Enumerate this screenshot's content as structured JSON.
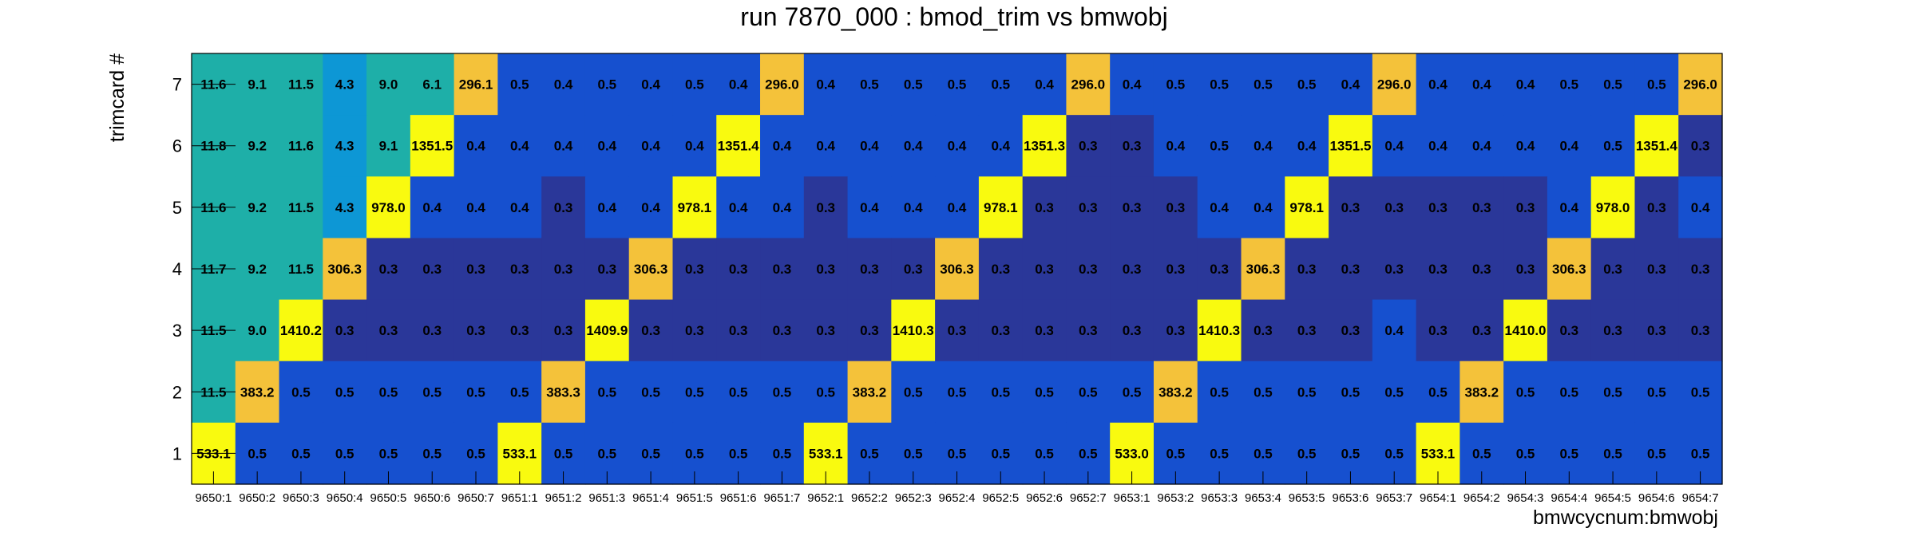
{
  "chart_data": {
    "type": "heatmap",
    "title": "run 7870_000 : bmod_trim vs bmwobj",
    "xlabel": "bmwcycnum:bmwobj",
    "ylabel": "trimcard #",
    "x_categories": [
      "9650:1",
      "9650:2",
      "9650:3",
      "9650:4",
      "9650:5",
      "9650:6",
      "9650:7",
      "9651:1",
      "9651:2",
      "9651:3",
      "9651:4",
      "9651:5",
      "9651:6",
      "9651:7",
      "9652:1",
      "9652:2",
      "9652:3",
      "9652:4",
      "9652:5",
      "9652:6",
      "9652:7",
      "9653:1",
      "9653:2",
      "9653:3",
      "9653:4",
      "9653:5",
      "9653:6",
      "9653:7",
      "9654:1",
      "9654:2",
      "9654:3",
      "9654:4",
      "9654:5",
      "9654:6",
      "9654:7"
    ],
    "y_categories": [
      "7",
      "6",
      "5",
      "4",
      "3",
      "2",
      "1"
    ],
    "z": [
      [
        "11.6",
        "9.1",
        "11.5",
        "4.3",
        "9.0",
        "6.1",
        "296.1",
        "0.5",
        "0.4",
        "0.5",
        "0.4",
        "0.5",
        "0.4",
        "296.0",
        "0.4",
        "0.5",
        "0.5",
        "0.5",
        "0.5",
        "0.4",
        "296.0",
        "0.4",
        "0.5",
        "0.5",
        "0.5",
        "0.5",
        "0.4",
        "296.0",
        "0.4",
        "0.4",
        "0.4",
        "0.5",
        "0.5",
        "0.5",
        "296.0"
      ],
      [
        "11.8",
        "9.2",
        "11.6",
        "4.3",
        "9.1",
        "1351.5",
        "0.4",
        "0.4",
        "0.4",
        "0.4",
        "0.4",
        "0.4",
        "1351.4",
        "0.4",
        "0.4",
        "0.4",
        "0.4",
        "0.4",
        "0.4",
        "1351.3",
        "0.3",
        "0.3",
        "0.4",
        "0.5",
        "0.4",
        "0.4",
        "1351.5",
        "0.4",
        "0.4",
        "0.4",
        "0.4",
        "0.4",
        "0.5",
        "1351.4",
        "0.3"
      ],
      [
        "11.6",
        "9.2",
        "11.5",
        "4.3",
        "978.0",
        "0.4",
        "0.4",
        "0.4",
        "0.3",
        "0.4",
        "0.4",
        "978.1",
        "0.4",
        "0.4",
        "0.3",
        "0.4",
        "0.4",
        "0.4",
        "978.1",
        "0.3",
        "0.3",
        "0.3",
        "0.3",
        "0.4",
        "0.4",
        "978.1",
        "0.3",
        "0.3",
        "0.3",
        "0.3",
        "0.3",
        "0.4",
        "978.0",
        "0.3",
        "0.4"
      ],
      [
        "11.7",
        "9.2",
        "11.5",
        "306.3",
        "0.3",
        "0.3",
        "0.3",
        "0.3",
        "0.3",
        "0.3",
        "306.3",
        "0.3",
        "0.3",
        "0.3",
        "0.3",
        "0.3",
        "0.3",
        "306.3",
        "0.3",
        "0.3",
        "0.3",
        "0.3",
        "0.3",
        "0.3",
        "306.3",
        "0.3",
        "0.3",
        "0.3",
        "0.3",
        "0.3",
        "0.3",
        "306.3",
        "0.3",
        "0.3",
        "0.3"
      ],
      [
        "11.5",
        "9.0",
        "1410.2",
        "0.3",
        "0.3",
        "0.3",
        "0.3",
        "0.3",
        "0.3",
        "1409.9",
        "0.3",
        "0.3",
        "0.3",
        "0.3",
        "0.3",
        "0.3",
        "1410.3",
        "0.3",
        "0.3",
        "0.3",
        "0.3",
        "0.3",
        "0.3",
        "1410.3",
        "0.3",
        "0.3",
        "0.3",
        "0.4",
        "0.3",
        "0.3",
        "1410.0",
        "0.3",
        "0.3",
        "0.3",
        "0.3"
      ],
      [
        "11.5",
        "383.2",
        "0.5",
        "0.5",
        "0.5",
        "0.5",
        "0.5",
        "0.5",
        "383.3",
        "0.5",
        "0.5",
        "0.5",
        "0.5",
        "0.5",
        "0.5",
        "383.2",
        "0.5",
        "0.5",
        "0.5",
        "0.5",
        "0.5",
        "0.5",
        "383.2",
        "0.5",
        "0.5",
        "0.5",
        "0.5",
        "0.5",
        "0.5",
        "383.2",
        "0.5",
        "0.5",
        "0.5",
        "0.5",
        "0.5"
      ],
      [
        "533.1",
        "0.5",
        "0.5",
        "0.5",
        "0.5",
        "0.5",
        "0.5",
        "533.1",
        "0.5",
        "0.5",
        "0.5",
        "0.5",
        "0.5",
        "0.5",
        "533.1",
        "0.5",
        "0.5",
        "0.5",
        "0.5",
        "0.5",
        "0.5",
        "533.0",
        "0.5",
        "0.5",
        "0.5",
        "0.5",
        "0.5",
        "0.5",
        "533.1",
        "0.5",
        "0.5",
        "0.5",
        "0.5",
        "0.5",
        "0.5"
      ]
    ],
    "colors": {
      "le_0.35": "#2a3799",
      "le_1": "#1650cf",
      "le_5": "#0d97d5",
      "le_15": "#1eafa8",
      "le_500": "#f4c23a",
      "gt_500": "#f9fa0f"
    },
    "grid": false,
    "legend": "none"
  }
}
